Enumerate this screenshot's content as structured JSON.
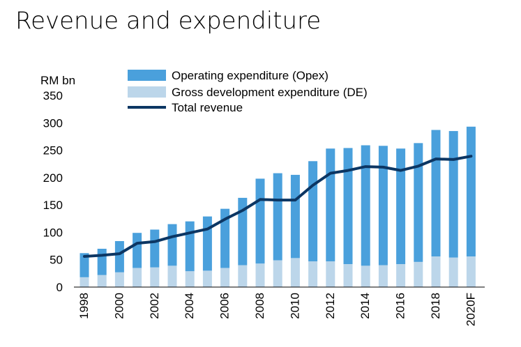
{
  "title": "Revenue and expenditure",
  "chart_data": {
    "type": "bar",
    "stacked": true,
    "ylabel": "RM bn",
    "ylim": [
      0,
      350
    ],
    "yticks": [
      0,
      50,
      100,
      150,
      200,
      250,
      300,
      350
    ],
    "grid": false,
    "legend_position": "top",
    "categories": [
      "1998",
      "1999",
      "2000",
      "2001",
      "2002",
      "2003",
      "2004",
      "2005",
      "2006",
      "2007",
      "2008",
      "2009",
      "2010",
      "2011",
      "2012",
      "2013",
      "2014",
      "2015",
      "2016",
      "2017",
      "2018",
      "2019",
      "2020F"
    ],
    "xtick_labels": [
      "1998",
      "",
      "2000",
      "",
      "2002",
      "",
      "2004",
      "",
      "2006",
      "",
      "2008",
      "",
      "2010",
      "",
      "2012",
      "",
      "2014",
      "",
      "2016",
      "",
      "2018",
      "",
      "2020F"
    ],
    "series": [
      {
        "name": "Gross development expenditure (DE)",
        "kind": "bar",
        "color": "#bcd6ea",
        "values": [
          18,
          22,
          27,
          35,
          36,
          39,
          29,
          30,
          35,
          40,
          43,
          49,
          53,
          47,
          47,
          42,
          39,
          40,
          42,
          46,
          56,
          54,
          56
        ]
      },
      {
        "name": "Operating expenditure (Opex)",
        "kind": "bar",
        "color": "#4aa0dc",
        "values": [
          44,
          48,
          57,
          64,
          69,
          76,
          91,
          99,
          108,
          123,
          155,
          159,
          152,
          183,
          206,
          212,
          220,
          218,
          211,
          217,
          231,
          231,
          237
        ]
      },
      {
        "name": "Total revenue",
        "kind": "line",
        "color": "#0c3663",
        "values": [
          56,
          58,
          61,
          80,
          83,
          92,
          99,
          106,
          124,
          140,
          160,
          159,
          159,
          186,
          208,
          213,
          220,
          219,
          213,
          221,
          234,
          233,
          239
        ]
      }
    ]
  }
}
